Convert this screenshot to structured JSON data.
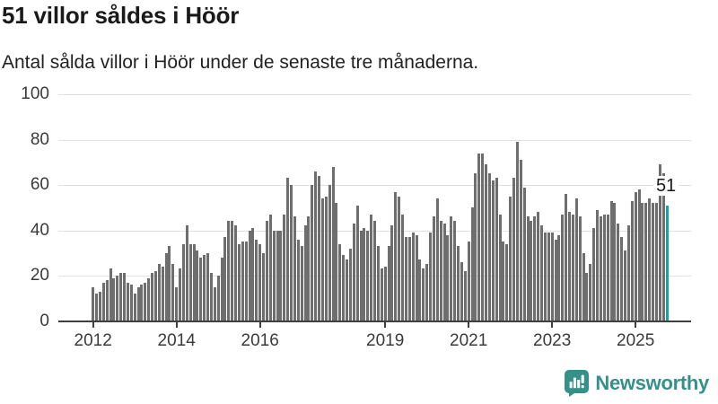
{
  "header": {
    "title": "51 villor såldes i Höör",
    "subtitle": "Antal sålda villor i Höör under de senaste tre månaderna."
  },
  "chart_data": {
    "type": "bar",
    "title": "51 villor såldes i Höör",
    "subtitle": "Antal sålda villor i Höör under de senaste tre månaderna.",
    "frequency": "monthly",
    "x_start": "2012-01",
    "x_end": "2025-10",
    "ylim": [
      0,
      100
    ],
    "grid": true,
    "y_ticks": [
      0,
      20,
      40,
      60,
      80,
      100
    ],
    "x_tick_years": [
      2012,
      2014,
      2016,
      2019,
      2021,
      2023,
      2025
    ],
    "values": [
      15,
      12,
      13,
      17,
      18,
      23,
      19,
      20,
      21,
      21,
      17,
      16,
      12,
      15,
      16,
      17,
      19,
      21,
      22,
      25,
      24,
      30,
      33,
      25,
      15,
      23,
      34,
      42,
      34,
      34,
      31,
      28,
      29,
      30,
      21,
      15,
      20,
      28,
      37,
      44,
      44,
      42,
      34,
      35,
      35,
      40,
      41,
      36,
      34,
      30,
      44,
      47,
      40,
      40,
      40,
      47,
      63,
      60,
      46,
      36,
      33,
      42,
      46,
      60,
      66,
      64,
      54,
      55,
      60,
      68,
      52,
      34,
      29,
      27,
      32,
      43,
      51,
      40,
      41,
      40,
      47,
      44,
      33,
      23,
      24,
      33,
      42,
      57,
      55,
      47,
      37,
      37,
      39,
      38,
      27,
      23,
      25,
      39,
      46,
      54,
      44,
      43,
      38,
      46,
      44,
      33,
      26,
      22,
      35,
      50,
      65,
      74,
      74,
      69,
      65,
      62,
      63,
      47,
      35,
      34,
      55,
      63,
      79,
      71,
      59,
      46,
      44,
      46,
      48,
      42,
      39,
      39,
      39,
      36,
      38,
      47,
      56,
      48,
      47,
      54,
      46,
      30,
      21,
      25,
      41,
      49,
      46,
      47,
      47,
      53,
      52,
      43,
      37,
      31,
      42,
      53,
      57,
      58,
      52,
      52,
      54,
      52,
      52,
      69,
      65,
      51
    ],
    "highlight": {
      "index": 165,
      "value": 51,
      "label": "51"
    },
    "bar_color": "#6e6e6e",
    "highlight_color": "#16a3a3",
    "grid_color": "#e2e2e2",
    "axis_color": "#3f3f3f"
  },
  "footer": {
    "brand": "Newsworthy",
    "brand_color": "#35908a"
  }
}
